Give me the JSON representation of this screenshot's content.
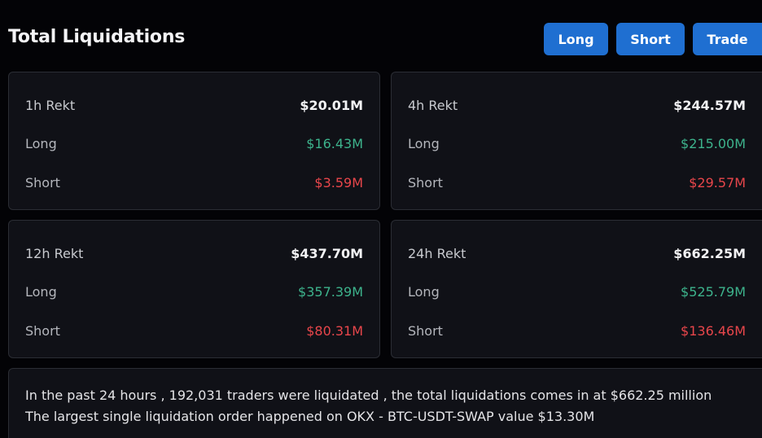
{
  "header": {
    "title": "Total Liquidations",
    "buttons": {
      "long": "Long",
      "short": "Short",
      "trade": "Trade"
    }
  },
  "cards": [
    {
      "label": "1h Rekt",
      "total": "$20.01M",
      "long_label": "Long",
      "long": "$16.43M",
      "short_label": "Short",
      "short": "$3.59M"
    },
    {
      "label": "4h Rekt",
      "total": "$244.57M",
      "long_label": "Long",
      "long": "$215.00M",
      "short_label": "Short",
      "short": "$29.57M"
    },
    {
      "label": "12h Rekt",
      "total": "$437.70M",
      "long_label": "Long",
      "long": "$357.39M",
      "short_label": "Short",
      "short": "$80.31M"
    },
    {
      "label": "24h Rekt",
      "total": "$662.25M",
      "long_label": "Long",
      "long": "$525.79M",
      "short_label": "Short",
      "short": "$136.46M"
    }
  ],
  "summary": {
    "line1": "In the past 24 hours , 192,031 traders were liquidated , the total liquidations comes in at $662.25 million",
    "line2": "The largest single liquidation order happened on OKX - BTC-USDT-SWAP value $13.30M"
  },
  "colors": {
    "background": "#030306",
    "card": "#101117",
    "button": "#1f6fd1",
    "long": "#3db38c",
    "short": "#e8464b"
  }
}
